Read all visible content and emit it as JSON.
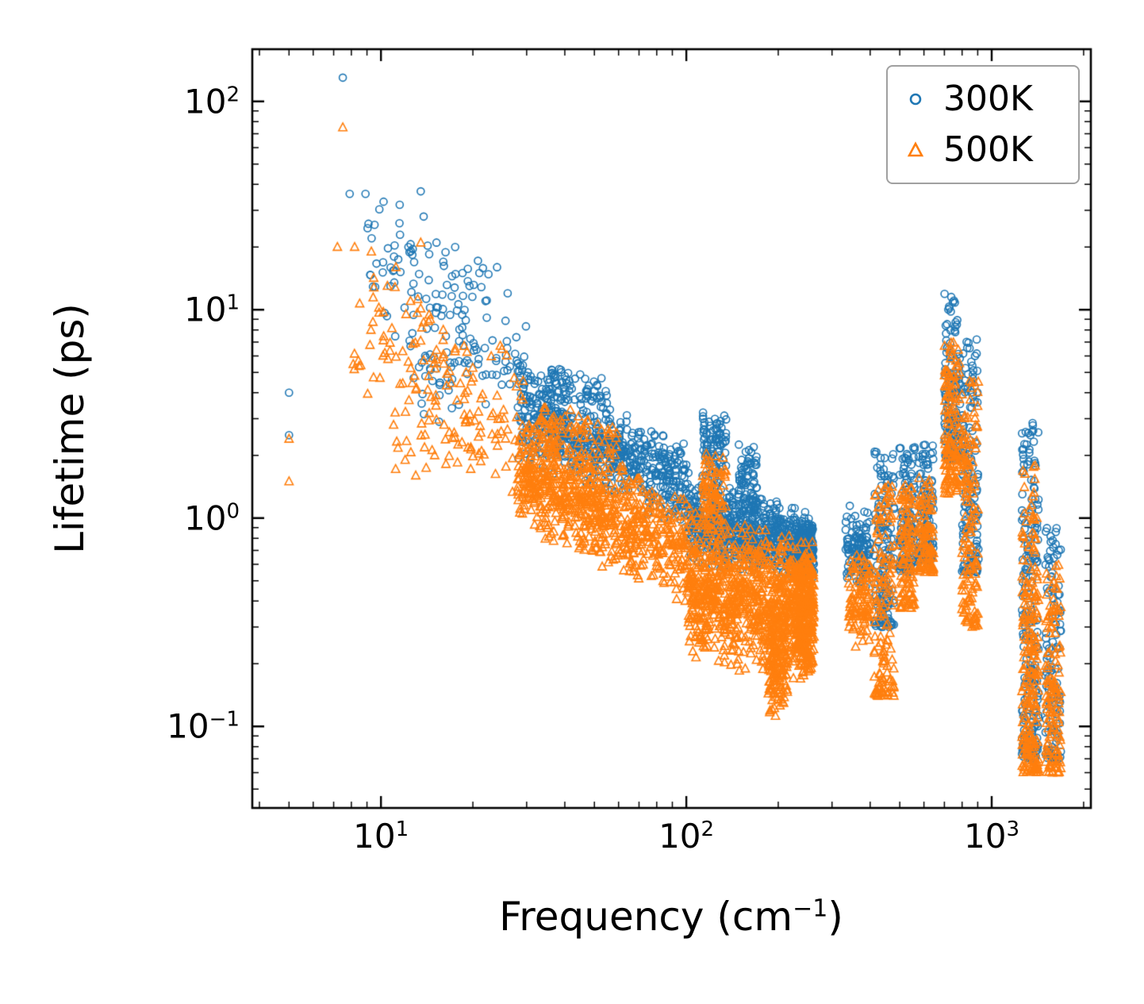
{
  "figure": {
    "background": "#ffffff",
    "ylabel": "Lifetime (ps)",
    "xlabel_parts": {
      "pre": "Frequency (cm",
      "sup": "−1",
      "post": ")"
    }
  },
  "chart_data": {
    "type": "scatter",
    "title": "",
    "xlabel": "Frequency (cm⁻¹)",
    "ylabel": "Lifetime (ps)",
    "x_scale": "log",
    "y_scale": "log",
    "xlim": [
      3.79,
      2112
    ],
    "ylim": [
      0.0406,
      178
    ],
    "grid": false,
    "legend_position": "upper right",
    "x_ticks": [
      {
        "value": 10,
        "base": "10",
        "exp": "1"
      },
      {
        "value": 100,
        "base": "10",
        "exp": "2"
      },
      {
        "value": 1000,
        "base": "10",
        "exp": "3"
      }
    ],
    "y_ticks": [
      {
        "value": 0.1,
        "base": "10",
        "exp": "−1"
      },
      {
        "value": 1,
        "base": "10",
        "exp": "0"
      },
      {
        "value": 10,
        "base": "10",
        "exp": "1"
      },
      {
        "value": 100,
        "base": "10",
        "exp": "2"
      }
    ],
    "series": [
      {
        "name": "300K",
        "marker": "circle",
        "color": "#1f77b4",
        "points": [
          [
            5.0,
            4.0
          ],
          [
            5.0,
            2.5
          ],
          [
            7.5,
            130
          ],
          [
            7.9,
            36
          ],
          [
            8.9,
            36
          ],
          [
            10.2,
            33
          ],
          [
            11.5,
            26
          ],
          [
            12.3,
            20
          ],
          [
            13.5,
            37
          ],
          [
            13.8,
            28
          ],
          [
            15.2,
            21
          ],
          [
            16.0,
            17
          ],
          [
            17.5,
            20
          ],
          [
            18.5,
            15
          ],
          [
            19.5,
            13
          ],
          [
            21,
            15
          ],
          [
            22,
            11
          ],
          [
            24,
            16
          ],
          [
            26,
            12
          ],
          [
            12.8,
            4.7
          ],
          [
            15.5,
            2.9
          ],
          [
            18,
            3.5
          ]
        ],
        "clusters": [
          {
            "x": [
              9,
              30
            ],
            "y0": [
              8,
              45
            ],
            "y1": [
              2.3,
              13
            ],
            "n": 110
          },
          {
            "x": [
              13,
              22
            ],
            "y": [
              3,
              9
            ],
            "n": 40
          },
          {
            "x": [
              28,
              100
            ],
            "y0": [
              1.8,
              6.5
            ],
            "y1": [
              0.85,
              2.3
            ],
            "n": 650
          },
          {
            "x": [
              35,
              55
            ],
            "y0": [
              3.5,
              6.0
            ],
            "y1": [
              3.0,
              5.0
            ],
            "n": 60
          },
          {
            "x": [
              100,
              260
            ],
            "y0": [
              0.55,
              1.7
            ],
            "y1": [
              0.5,
              1.1
            ],
            "n": 700
          },
          {
            "x": [
              113,
              135
            ],
            "y": [
              1.4,
              3.3
            ],
            "n": 90
          },
          {
            "x": [
              148,
              172
            ],
            "y": [
              0.9,
              2.4
            ],
            "n": 70
          },
          {
            "x": [
              230,
              262
            ],
            "y": [
              0.5,
              1.05
            ],
            "n": 120
          },
          {
            "x": [
              332,
              400
            ],
            "y": [
              0.45,
              1.2
            ],
            "n": 120
          },
          {
            "x": [
              412,
              480
            ],
            "y": [
              0.3,
              2.1
            ],
            "n": 150,
            "bias": "low"
          },
          {
            "x": [
              498,
              560
            ],
            "y": [
              0.55,
              2.2
            ],
            "n": 130,
            "bias": "low"
          },
          {
            "x": [
              576,
              645
            ],
            "y": [
              0.62,
              2.25
            ],
            "n": 120,
            "bias": "low"
          },
          {
            "x": [
              700,
              790
            ],
            "y": [
              1.9,
              12.5
            ],
            "n": 150,
            "bias": "low"
          },
          {
            "x": [
              798,
              905
            ],
            "y": [
              0.55,
              7.2
            ],
            "n": 150,
            "bias": "low"
          },
          {
            "x": [
              1255,
              1425
            ],
            "y": [
              0.07,
              3.0
            ],
            "n": 220,
            "bias": "low"
          },
          {
            "x": [
              1500,
              1685
            ],
            "y": [
              0.07,
              0.9
            ],
            "n": 130,
            "bias": "low"
          }
        ]
      },
      {
        "name": "500K",
        "marker": "triangle",
        "color": "#ff7f0e",
        "points": [
          [
            5.0,
            2.4
          ],
          [
            5.0,
            1.5
          ],
          [
            7.5,
            75
          ],
          [
            7.2,
            20
          ],
          [
            8.2,
            20
          ],
          [
            9.3,
            19
          ],
          [
            10.5,
            13
          ],
          [
            11.2,
            16
          ],
          [
            12.5,
            11
          ],
          [
            13.5,
            21
          ],
          [
            14.5,
            9
          ],
          [
            16,
            8
          ],
          [
            17.5,
            6.5
          ],
          [
            19,
            5
          ],
          [
            11,
            2.8
          ],
          [
            12,
            1.9
          ],
          [
            13,
            1.6
          ]
        ],
        "clusters": [
          {
            "x": [
              8,
              30
            ],
            "y0": [
              4,
              21
            ],
            "y1": [
              1.1,
              8
            ],
            "n": 120
          },
          {
            "x": [
              11,
              22
            ],
            "y": [
              1.5,
              4
            ],
            "n": 40
          },
          {
            "x": [
              28,
              100
            ],
            "y0": [
              0.9,
              3.6
            ],
            "y1": [
              0.35,
              1.4
            ],
            "n": 750
          },
          {
            "x": [
              32,
              60
            ],
            "y0": [
              2.5,
              3.6
            ],
            "y1": [
              1.8,
              3.0
            ],
            "n": 60
          },
          {
            "x": [
              100,
              260
            ],
            "y0": [
              0.2,
              1.25
            ],
            "y1": [
              0.16,
              0.8
            ],
            "n": 900
          },
          {
            "x": [
              113,
              135
            ],
            "y": [
              0.8,
              2.25
            ],
            "n": 80
          },
          {
            "x": [
              185,
              215
            ],
            "y": [
              0.1,
              0.45
            ],
            "n": 140
          },
          {
            "x": [
              230,
              262
            ],
            "y": [
              0.17,
              0.8
            ],
            "n": 250
          },
          {
            "x": [
              340,
              400
            ],
            "y": [
              0.23,
              0.75
            ],
            "n": 100
          },
          {
            "x": [
              412,
              480
            ],
            "y": [
              0.14,
              1.5
            ],
            "n": 140,
            "bias": "low"
          },
          {
            "x": [
              498,
              560
            ],
            "y": [
              0.37,
              1.5
            ],
            "n": 110,
            "bias": "low"
          },
          {
            "x": [
              576,
              645
            ],
            "y": [
              0.55,
              1.6
            ],
            "n": 100,
            "bias": "low"
          },
          {
            "x": [
              700,
              790
            ],
            "y": [
              1.3,
              7.0
            ],
            "n": 140,
            "bias": "low"
          },
          {
            "x": [
              798,
              905
            ],
            "y": [
              0.3,
              4.6
            ],
            "n": 140,
            "bias": "low"
          },
          {
            "x": [
              1255,
              1425
            ],
            "y": [
              0.06,
              1.8
            ],
            "n": 220,
            "bias": "low"
          },
          {
            "x": [
              1500,
              1685
            ],
            "y": [
              0.06,
              0.6
            ],
            "n": 130,
            "bias": "low"
          }
        ]
      }
    ]
  }
}
